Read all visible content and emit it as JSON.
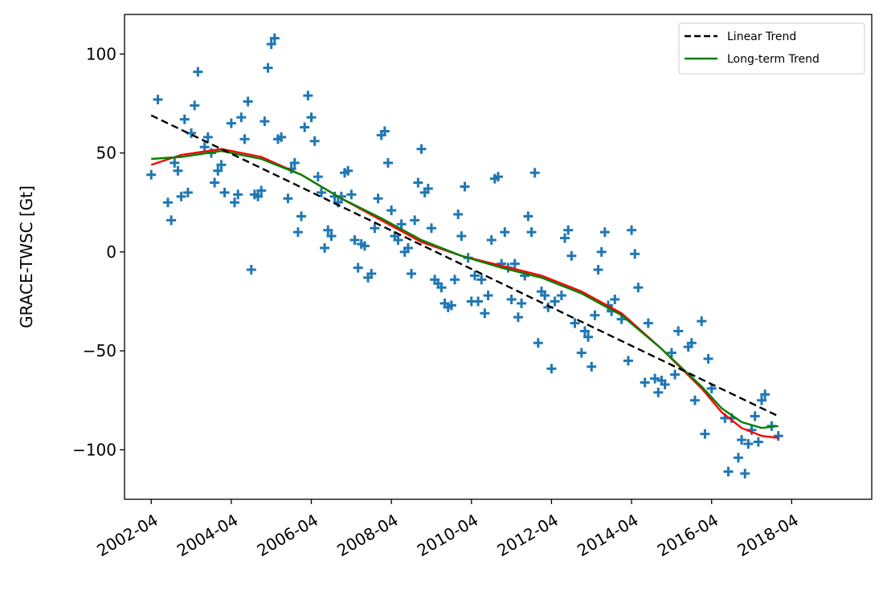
{
  "chart_data": {
    "type": "scatter",
    "title": "",
    "xlabel": "",
    "ylabel": "GRACE-TWSC [Gt]",
    "x_ticks": [
      "2002-04",
      "2004-04",
      "2006-04",
      "2008-04",
      "2010-04",
      "2012-04",
      "2014-04",
      "2016-04",
      "2018-04"
    ],
    "y_ticks": [
      "−100",
      "−50",
      "0",
      "50",
      "100"
    ],
    "xlim": [
      "2001-08",
      "2020-04"
    ],
    "ylim": [
      -125,
      120
    ],
    "grid": false,
    "legend": {
      "placement": "top-right",
      "entries": [
        "Linear Trend",
        "Long-term Trend"
      ]
    },
    "colors": {
      "observations": "#1f77b4",
      "linear": "#000000",
      "longterm": "#008000",
      "fit": "#ff0000"
    },
    "series": [
      {
        "marker": "plus",
        "points": [
          [
            "2002-04",
            39
          ],
          [
            "2002-06",
            77
          ],
          [
            "2002-09",
            25
          ],
          [
            "2002-10",
            16
          ],
          [
            "2002-11",
            45
          ],
          [
            "2002-12",
            41
          ],
          [
            "2003-01",
            28
          ],
          [
            "2003-02",
            67
          ],
          [
            "2003-03",
            30
          ],
          [
            "2003-04",
            60
          ],
          [
            "2003-05",
            74
          ],
          [
            "2003-06",
            91
          ],
          [
            "2003-08",
            53
          ],
          [
            "2003-09",
            58
          ],
          [
            "2003-10",
            50
          ],
          [
            "2003-11",
            35
          ],
          [
            "2003-12",
            41
          ],
          [
            "2004-01",
            44
          ],
          [
            "2004-02",
            30
          ],
          [
            "2004-04",
            65
          ],
          [
            "2004-05",
            25
          ],
          [
            "2004-06",
            29
          ],
          [
            "2004-07",
            68
          ],
          [
            "2004-08",
            57
          ],
          [
            "2004-09",
            76
          ],
          [
            "2004-10",
            -9
          ],
          [
            "2004-11",
            29
          ],
          [
            "2004-12",
            28
          ],
          [
            "2005-01",
            31
          ],
          [
            "2005-02",
            66
          ],
          [
            "2005-03",
            93
          ],
          [
            "2005-04",
            105
          ],
          [
            "2005-05",
            108
          ],
          [
            "2005-06",
            57
          ],
          [
            "2005-07",
            58
          ],
          [
            "2005-09",
            27
          ],
          [
            "2005-10",
            42
          ],
          [
            "2005-11",
            45
          ],
          [
            "2005-12",
            10
          ],
          [
            "2006-01",
            18
          ],
          [
            "2006-02",
            63
          ],
          [
            "2006-03",
            79
          ],
          [
            "2006-04",
            68
          ],
          [
            "2006-05",
            56
          ],
          [
            "2006-06",
            38
          ],
          [
            "2006-07",
            30
          ],
          [
            "2006-08",
            2
          ],
          [
            "2006-09",
            11
          ],
          [
            "2006-10",
            8
          ],
          [
            "2006-11",
            28
          ],
          [
            "2006-12",
            25
          ],
          [
            "2007-01",
            28
          ],
          [
            "2007-02",
            40
          ],
          [
            "2007-03",
            41
          ],
          [
            "2007-04",
            29
          ],
          [
            "2007-05",
            6
          ],
          [
            "2007-06",
            -8
          ],
          [
            "2007-07",
            4
          ],
          [
            "2007-08",
            3
          ],
          [
            "2007-09",
            -13
          ],
          [
            "2007-10",
            -11
          ],
          [
            "2007-11",
            12
          ],
          [
            "2007-12",
            27
          ],
          [
            "2008-01",
            59
          ],
          [
            "2008-02",
            61
          ],
          [
            "2008-03",
            45
          ],
          [
            "2008-04",
            21
          ],
          [
            "2008-05",
            8
          ],
          [
            "2008-06",
            6
          ],
          [
            "2008-07",
            14
          ],
          [
            "2008-08",
            0
          ],
          [
            "2008-09",
            2
          ],
          [
            "2008-10",
            -11
          ],
          [
            "2008-11",
            16
          ],
          [
            "2008-12",
            35
          ],
          [
            "2009-01",
            52
          ],
          [
            "2009-02",
            30
          ],
          [
            "2009-03",
            32
          ],
          [
            "2009-04",
            12
          ],
          [
            "2009-05",
            -14
          ],
          [
            "2009-06",
            -16
          ],
          [
            "2009-07",
            -18
          ],
          [
            "2009-08",
            -26
          ],
          [
            "2009-09",
            -28
          ],
          [
            "2009-10",
            -27
          ],
          [
            "2009-11",
            -14
          ],
          [
            "2009-12",
            19
          ],
          [
            "2010-01",
            8
          ],
          [
            "2010-02",
            33
          ],
          [
            "2010-03",
            -3
          ],
          [
            "2010-04",
            -25
          ],
          [
            "2010-05",
            -12
          ],
          [
            "2010-06",
            -25
          ],
          [
            "2010-07",
            -14
          ],
          [
            "2010-08",
            -31
          ],
          [
            "2010-09",
            -22
          ],
          [
            "2010-10",
            6
          ],
          [
            "2010-11",
            37
          ],
          [
            "2010-12",
            38
          ],
          [
            "2011-01",
            -6
          ],
          [
            "2011-02",
            10
          ],
          [
            "2011-03",
            -8
          ],
          [
            "2011-04",
            -24
          ],
          [
            "2011-05",
            -6
          ],
          [
            "2011-06",
            -33
          ],
          [
            "2011-07",
            -26
          ],
          [
            "2011-08",
            -12
          ],
          [
            "2011-09",
            18
          ],
          [
            "2011-10",
            10
          ],
          [
            "2011-11",
            40
          ],
          [
            "2011-12",
            -46
          ],
          [
            "2012-01",
            -20
          ],
          [
            "2012-02",
            -22
          ],
          [
            "2012-03",
            -28
          ],
          [
            "2012-04",
            -59
          ],
          [
            "2012-05",
            -25
          ],
          [
            "2012-07",
            -22
          ],
          [
            "2012-08",
            7
          ],
          [
            "2012-09",
            11
          ],
          [
            "2012-10",
            -2
          ],
          [
            "2012-11",
            -36
          ],
          [
            "2013-01",
            -51
          ],
          [
            "2013-02",
            -40
          ],
          [
            "2013-03",
            -43
          ],
          [
            "2013-04",
            -58
          ],
          [
            "2013-05",
            -32
          ],
          [
            "2013-06",
            -9
          ],
          [
            "2013-07",
            0
          ],
          [
            "2013-08",
            10
          ],
          [
            "2013-09",
            -27
          ],
          [
            "2013-10",
            -30
          ],
          [
            "2013-11",
            -24
          ],
          [
            "2014-01",
            -34
          ],
          [
            "2014-03",
            -55
          ],
          [
            "2014-04",
            11
          ],
          [
            "2014-05",
            -1
          ],
          [
            "2014-06",
            -18
          ],
          [
            "2014-08",
            -66
          ],
          [
            "2014-09",
            -36
          ],
          [
            "2014-11",
            -64
          ],
          [
            "2014-12",
            -71
          ],
          [
            "2015-01",
            -65
          ],
          [
            "2015-02",
            -67
          ],
          [
            "2015-04",
            -51
          ],
          [
            "2015-05",
            -62
          ],
          [
            "2015-06",
            -40
          ],
          [
            "2015-09",
            -48
          ],
          [
            "2015-10",
            -46
          ],
          [
            "2015-11",
            -75
          ],
          [
            "2016-01",
            -35
          ],
          [
            "2016-02",
            -92
          ],
          [
            "2016-03",
            -54
          ],
          [
            "2016-04",
            -69
          ],
          [
            "2016-08",
            -84
          ],
          [
            "2016-09",
            -111
          ],
          [
            "2016-10",
            -84
          ],
          [
            "2016-12",
            -104
          ],
          [
            "2017-01",
            -95
          ],
          [
            "2017-02",
            -112
          ],
          [
            "2017-03",
            -97
          ],
          [
            "2017-04",
            -90
          ],
          [
            "2017-05",
            -83
          ],
          [
            "2017-06",
            -96
          ],
          [
            "2017-07",
            -75
          ],
          [
            "2017-08",
            -72
          ],
          [
            "2017-10",
            -88
          ],
          [
            "2017-12",
            -93
          ]
        ]
      },
      {
        "name": "Linear Trend",
        "style": "dashed",
        "points": [
          [
            "2002-04",
            69
          ],
          [
            "2017-12",
            -83
          ]
        ]
      },
      {
        "name": "Long-term Trend",
        "points": [
          [
            "2002-04",
            47
          ],
          [
            "2003-01",
            48
          ],
          [
            "2004-01",
            51
          ],
          [
            "2005-01",
            47
          ],
          [
            "2006-01",
            39
          ],
          [
            "2007-01",
            27
          ],
          [
            "2008-01",
            17
          ],
          [
            "2009-01",
            6
          ],
          [
            "2010-01",
            -2
          ],
          [
            "2011-01",
            -8
          ],
          [
            "2012-01",
            -13
          ],
          [
            "2013-01",
            -21
          ],
          [
            "2014-01",
            -32
          ],
          [
            "2015-01",
            -49
          ],
          [
            "2016-01",
            -68
          ],
          [
            "2016-07",
            -79
          ],
          [
            "2017-01",
            -86
          ],
          [
            "2017-07",
            -89
          ],
          [
            "2017-12",
            -88
          ]
        ]
      },
      {
        "points": [
          [
            "2002-04",
            44
          ],
          [
            "2003-01",
            49
          ],
          [
            "2004-01",
            52
          ],
          [
            "2005-01",
            48
          ],
          [
            "2006-01",
            39
          ],
          [
            "2007-01",
            27
          ],
          [
            "2008-01",
            16
          ],
          [
            "2009-01",
            5
          ],
          [
            "2010-01",
            -2
          ],
          [
            "2011-01",
            -7
          ],
          [
            "2012-01",
            -12
          ],
          [
            "2013-01",
            -20
          ],
          [
            "2014-01",
            -31
          ],
          [
            "2015-01",
            -49
          ],
          [
            "2016-01",
            -69
          ],
          [
            "2016-07",
            -81
          ],
          [
            "2017-01",
            -89
          ],
          [
            "2017-07",
            -93
          ],
          [
            "2017-12",
            -94
          ]
        ]
      }
    ]
  }
}
